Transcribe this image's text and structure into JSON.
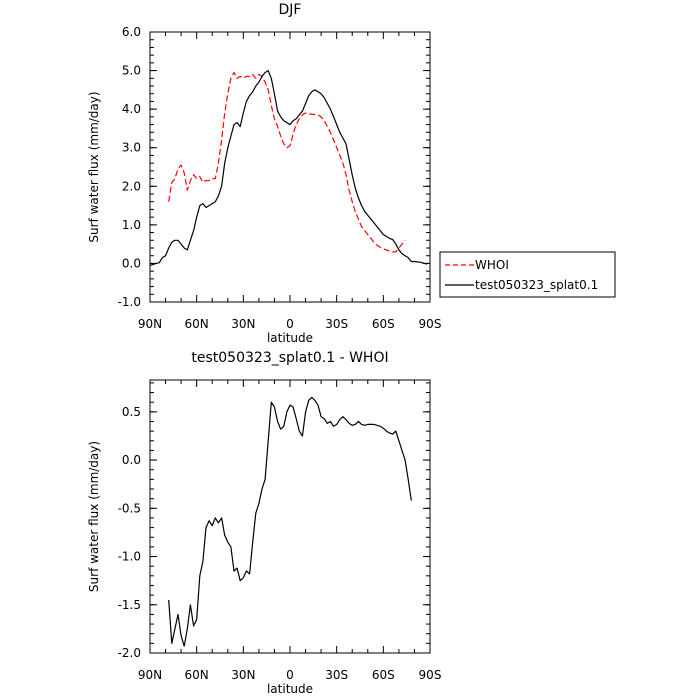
{
  "chart_data": [
    {
      "type": "line",
      "title": "DJF",
      "xlabel": "latitude",
      "ylabel": "Surf water flux (mm/day)",
      "xlim": [
        90,
        -90
      ],
      "ylim": [
        -1.0,
        6.0
      ],
      "x_ticks": [
        90,
        60,
        30,
        0,
        -30,
        -60,
        -90
      ],
      "x_tick_labels": [
        "90N",
        "60N",
        "30N",
        "0",
        "30S",
        "60S",
        "90S"
      ],
      "y_ticks": [
        -1,
        0,
        1,
        2,
        3,
        4,
        5,
        6
      ],
      "y_tick_labels": [
        "-1.0",
        "0.0",
        "1.0",
        "2.0",
        "3.0",
        "4.0",
        "5.0",
        "6.0"
      ],
      "grid": false,
      "legend": {
        "placement": "outside-right",
        "entries": [
          "WHOI",
          "test050323_splat0.1"
        ]
      },
      "series": [
        {
          "name": "WHOI",
          "color": "#ff0000",
          "style": "dashed",
          "points": [
            [
              78,
              1.6
            ],
            [
              76,
              2.1
            ],
            [
              74,
              2.2
            ],
            [
              72,
              2.45
            ],
            [
              70,
              2.55
            ],
            [
              68,
              2.35
            ],
            [
              66,
              1.9
            ],
            [
              64,
              2.15
            ],
            [
              62,
              2.3
            ],
            [
              60,
              2.2
            ],
            [
              58,
              2.25
            ],
            [
              56,
              2.1
            ],
            [
              54,
              2.15
            ],
            [
              52,
              2.15
            ],
            [
              50,
              2.2
            ],
            [
              48,
              2.2
            ],
            [
              46,
              2.6
            ],
            [
              44,
              3.2
            ],
            [
              42,
              3.9
            ],
            [
              40,
              4.4
            ],
            [
              38,
              4.8
            ],
            [
              36,
              4.95
            ],
            [
              34,
              4.8
            ],
            [
              32,
              4.85
            ],
            [
              30,
              4.8
            ],
            [
              28,
              4.85
            ],
            [
              26,
              4.85
            ],
            [
              24,
              4.9
            ],
            [
              22,
              4.8
            ],
            [
              20,
              4.9
            ],
            [
              18,
              4.85
            ],
            [
              16,
              4.7
            ],
            [
              14,
              4.5
            ],
            [
              12,
              4.1
            ],
            [
              10,
              3.75
            ],
            [
              8,
              3.55
            ],
            [
              6,
              3.3
            ],
            [
              4,
              3.1
            ],
            [
              2,
              3.0
            ],
            [
              0,
              3.05
            ],
            [
              -2,
              3.35
            ],
            [
              -4,
              3.6
            ],
            [
              -6,
              3.75
            ],
            [
              -8,
              3.85
            ],
            [
              -10,
              3.9
            ],
            [
              -12,
              3.88
            ],
            [
              -14,
              3.87
            ],
            [
              -16,
              3.86
            ],
            [
              -18,
              3.85
            ],
            [
              -20,
              3.8
            ],
            [
              -22,
              3.7
            ],
            [
              -24,
              3.55
            ],
            [
              -26,
              3.4
            ],
            [
              -28,
              3.2
            ],
            [
              -30,
              3.0
            ],
            [
              -32,
              2.8
            ],
            [
              -34,
              2.6
            ],
            [
              -36,
              2.3
            ],
            [
              -38,
              1.9
            ],
            [
              -40,
              1.6
            ],
            [
              -42,
              1.35
            ],
            [
              -44,
              1.15
            ],
            [
              -46,
              0.95
            ],
            [
              -48,
              0.85
            ],
            [
              -50,
              0.75
            ],
            [
              -52,
              0.65
            ],
            [
              -54,
              0.55
            ],
            [
              -56,
              0.47
            ],
            [
              -58,
              0.42
            ],
            [
              -60,
              0.38
            ],
            [
              -62,
              0.35
            ],
            [
              -64,
              0.32
            ],
            [
              -66,
              0.3
            ],
            [
              -68,
              0.3
            ],
            [
              -70,
              0.4
            ],
            [
              -72,
              0.5
            ],
            [
              -74,
              0.6
            ]
          ]
        },
        {
          "name": "test050323_splat0.1",
          "color": "#000000",
          "style": "solid",
          "points": [
            [
              90,
              -0.05
            ],
            [
              86,
              0.0
            ],
            [
              84,
              0.02
            ],
            [
              82,
              0.15
            ],
            [
              80,
              0.2
            ],
            [
              78,
              0.4
            ],
            [
              76,
              0.55
            ],
            [
              74,
              0.6
            ],
            [
              72,
              0.6
            ],
            [
              70,
              0.5
            ],
            [
              68,
              0.4
            ],
            [
              66,
              0.35
            ],
            [
              64,
              0.6
            ],
            [
              62,
              0.85
            ],
            [
              60,
              1.2
            ],
            [
              58,
              1.5
            ],
            [
              56,
              1.55
            ],
            [
              54,
              1.45
            ],
            [
              52,
              1.5
            ],
            [
              50,
              1.55
            ],
            [
              48,
              1.6
            ],
            [
              46,
              1.75
            ],
            [
              44,
              2.0
            ],
            [
              42,
              2.6
            ],
            [
              40,
              3.0
            ],
            [
              38,
              3.3
            ],
            [
              36,
              3.6
            ],
            [
              34,
              3.65
            ],
            [
              32,
              3.55
            ],
            [
              30,
              3.9
            ],
            [
              28,
              4.2
            ],
            [
              26,
              4.35
            ],
            [
              24,
              4.45
            ],
            [
              22,
              4.6
            ],
            [
              20,
              4.7
            ],
            [
              18,
              4.85
            ],
            [
              16,
              4.95
            ],
            [
              14,
              5.0
            ],
            [
              12,
              4.8
            ],
            [
              10,
              4.4
            ],
            [
              8,
              3.95
            ],
            [
              6,
              3.8
            ],
            [
              4,
              3.7
            ],
            [
              2,
              3.65
            ],
            [
              0,
              3.6
            ],
            [
              -2,
              3.7
            ],
            [
              -4,
              3.75
            ],
            [
              -6,
              3.85
            ],
            [
              -8,
              3.95
            ],
            [
              -10,
              4.15
            ],
            [
              -12,
              4.35
            ],
            [
              -14,
              4.45
            ],
            [
              -16,
              4.5
            ],
            [
              -18,
              4.45
            ],
            [
              -20,
              4.4
            ],
            [
              -22,
              4.3
            ],
            [
              -24,
              4.15
            ],
            [
              -26,
              4.0
            ],
            [
              -28,
              3.8
            ],
            [
              -30,
              3.6
            ],
            [
              -32,
              3.4
            ],
            [
              -34,
              3.25
            ],
            [
              -36,
              3.1
            ],
            [
              -38,
              2.7
            ],
            [
              -40,
              2.3
            ],
            [
              -42,
              1.95
            ],
            [
              -44,
              1.7
            ],
            [
              -46,
              1.5
            ],
            [
              -48,
              1.35
            ],
            [
              -50,
              1.25
            ],
            [
              -52,
              1.15
            ],
            [
              -54,
              1.05
            ],
            [
              -56,
              0.95
            ],
            [
              -58,
              0.85
            ],
            [
              -60,
              0.75
            ],
            [
              -62,
              0.7
            ],
            [
              -64,
              0.65
            ],
            [
              -66,
              0.62
            ],
            [
              -68,
              0.5
            ],
            [
              -70,
              0.35
            ],
            [
              -72,
              0.25
            ],
            [
              -74,
              0.2
            ],
            [
              -76,
              0.15
            ],
            [
              -78,
              0.05
            ],
            [
              -80,
              0.05
            ],
            [
              -84,
              0.03
            ],
            [
              -88,
              -0.02
            ]
          ]
        }
      ]
    },
    {
      "type": "line",
      "title": "test050323_splat0.1 - WHOI",
      "xlabel": "latitude",
      "ylabel": "Surf water flux (mm/day)",
      "xlim": [
        90,
        -90
      ],
      "ylim": [
        -2.0,
        0.83
      ],
      "x_ticks": [
        90,
        60,
        30,
        0,
        -30,
        -60,
        -90
      ],
      "x_tick_labels": [
        "90N",
        "60N",
        "30N",
        "0",
        "30S",
        "60S",
        "90S"
      ],
      "y_ticks": [
        -2.0,
        -1.5,
        -1.0,
        -0.5,
        0.0,
        0.5
      ],
      "y_tick_labels": [
        "-2.0",
        "-1.5",
        "-1.0",
        "-0.5",
        "0.0",
        "0.5"
      ],
      "grid": false,
      "series": [
        {
          "color": "#000000",
          "style": "solid",
          "points": [
            [
              78,
              -1.45
            ],
            [
              76,
              -1.9
            ],
            [
              74,
              -1.75
            ],
            [
              72,
              -1.6
            ],
            [
              70,
              -1.82
            ],
            [
              68,
              -1.93
            ],
            [
              66,
              -1.75
            ],
            [
              64,
              -1.5
            ],
            [
              62,
              -1.72
            ],
            [
              60,
              -1.65
            ],
            [
              58,
              -1.2
            ],
            [
              56,
              -1.05
            ],
            [
              54,
              -0.7
            ],
            [
              52,
              -0.63
            ],
            [
              50,
              -0.68
            ],
            [
              48,
              -0.6
            ],
            [
              46,
              -0.65
            ],
            [
              44,
              -0.6
            ],
            [
              42,
              -0.78
            ],
            [
              40,
              -0.85
            ],
            [
              38,
              -0.9
            ],
            [
              36,
              -1.15
            ],
            [
              34,
              -1.12
            ],
            [
              32,
              -1.25
            ],
            [
              30,
              -1.22
            ],
            [
              28,
              -1.15
            ],
            [
              26,
              -1.18
            ],
            [
              24,
              -0.85
            ],
            [
              22,
              -0.55
            ],
            [
              20,
              -0.45
            ],
            [
              18,
              -0.3
            ],
            [
              16,
              -0.2
            ],
            [
              14,
              0.2
            ],
            [
              12,
              0.6
            ],
            [
              10,
              0.55
            ],
            [
              8,
              0.4
            ],
            [
              6,
              0.32
            ],
            [
              4,
              0.35
            ],
            [
              2,
              0.5
            ],
            [
              0,
              0.57
            ],
            [
              -2,
              0.55
            ],
            [
              -4,
              0.43
            ],
            [
              -6,
              0.3
            ],
            [
              -8,
              0.25
            ],
            [
              -10,
              0.5
            ],
            [
              -12,
              0.62
            ],
            [
              -14,
              0.65
            ],
            [
              -16,
              0.62
            ],
            [
              -18,
              0.57
            ],
            [
              -20,
              0.45
            ],
            [
              -22,
              0.43
            ],
            [
              -24,
              0.38
            ],
            [
              -26,
              0.4
            ],
            [
              -28,
              0.35
            ],
            [
              -30,
              0.37
            ],
            [
              -32,
              0.42
            ],
            [
              -34,
              0.45
            ],
            [
              -36,
              0.42
            ],
            [
              -38,
              0.38
            ],
            [
              -40,
              0.36
            ],
            [
              -42,
              0.37
            ],
            [
              -44,
              0.4
            ],
            [
              -46,
              0.37
            ],
            [
              -48,
              0.36
            ],
            [
              -50,
              0.37
            ],
            [
              -52,
              0.37
            ],
            [
              -54,
              0.37
            ],
            [
              -56,
              0.36
            ],
            [
              -58,
              0.35
            ],
            [
              -60,
              0.33
            ],
            [
              -62,
              0.3
            ],
            [
              -64,
              0.28
            ],
            [
              -66,
              0.27
            ],
            [
              -68,
              0.3
            ],
            [
              -70,
              0.2
            ],
            [
              -72,
              0.1
            ],
            [
              -74,
              0.0
            ],
            [
              -76,
              -0.2
            ],
            [
              -78,
              -0.42
            ]
          ]
        }
      ]
    }
  ]
}
